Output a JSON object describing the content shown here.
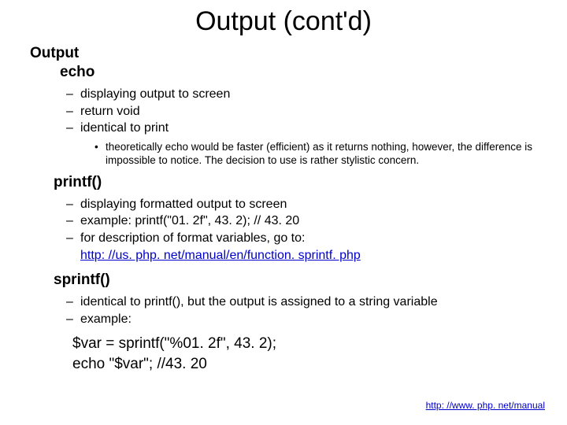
{
  "title": "Output (cont'd)",
  "output_heading": "Output",
  "echo_heading": "echo",
  "echo_items": {
    "i0": "displaying output to screen",
    "i1": "return void",
    "i2": "identical to print"
  },
  "echo_note": "theoretically echo would be faster (efficient) as it returns nothing, however, the difference is impossible to notice. The decision to use is rather stylistic concern.",
  "printf_heading": "printf()",
  "printf_items": {
    "i0": "displaying formatted output to screen",
    "i1": "example: printf(\"01. 2f\", 43. 2); // 43. 20",
    "i2_prefix": "for description of format variables, go to:",
    "i2_link": "http: //us. php. net/manual/en/function. sprintf. php"
  },
  "sprintf_heading": "sprintf()",
  "sprintf_items": {
    "i0": "identical to printf(), but the output is assigned to a string variable",
    "i1": "example:"
  },
  "code": {
    "l0": "$var = sprintf(\"%01. 2f\", 43. 2);",
    "l1": "echo \"$var\"; //43. 20"
  },
  "footer_link": "http: //www. php. net/manual"
}
